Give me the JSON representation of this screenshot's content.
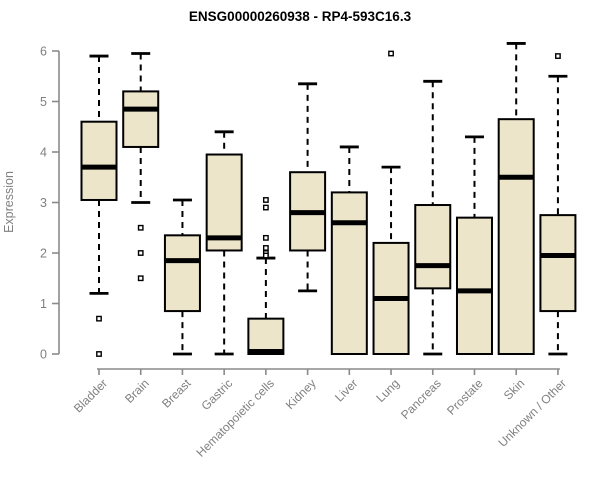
{
  "chart_data": {
    "type": "boxplot",
    "title": "ENSG00000260938 - RP4-593C16.3",
    "ylabel": "Expression",
    "xlabel": "",
    "ylim": [
      0,
      6
    ],
    "yticks": [
      0,
      1,
      2,
      3,
      4,
      5,
      6
    ],
    "grid": false,
    "legend": null,
    "categories": [
      "Bladder",
      "Brain",
      "Breast",
      "Gastric",
      "Hematopoietic cells",
      "Kidney",
      "Liver",
      "Lung",
      "Pancreas",
      "Prostate",
      "Skin",
      "Unknown / Other"
    ],
    "boxes": [
      {
        "category": "Bladder",
        "whisker_low": 1.2,
        "q1": 3.05,
        "median": 3.7,
        "q3": 4.6,
        "whisker_high": 5.9,
        "outliers": [
          0.7,
          0.0
        ]
      },
      {
        "category": "Brain",
        "whisker_low": 3.0,
        "q1": 4.1,
        "median": 4.85,
        "q3": 5.2,
        "whisker_high": 5.95,
        "outliers": [
          2.5,
          2.0,
          1.5
        ]
      },
      {
        "category": "Breast",
        "whisker_low": 0.0,
        "q1": 0.85,
        "median": 1.85,
        "q3": 2.35,
        "whisker_high": 3.05,
        "outliers": []
      },
      {
        "category": "Gastric",
        "whisker_low": 0.0,
        "q1": 2.05,
        "median": 2.3,
        "q3": 3.95,
        "whisker_high": 4.4,
        "outliers": []
      },
      {
        "category": "Hematopoietic cells",
        "whisker_low": 0.0,
        "q1": 0.0,
        "median": 0.05,
        "q3": 0.7,
        "whisker_high": 1.9,
        "outliers": [
          3.05,
          2.9,
          2.3,
          2.1,
          2.0,
          1.95
        ]
      },
      {
        "category": "Kidney",
        "whisker_low": 1.25,
        "q1": 2.05,
        "median": 2.8,
        "q3": 3.6,
        "whisker_high": 5.35,
        "outliers": []
      },
      {
        "category": "Liver",
        "whisker_low": 0.0,
        "q1": 0.0,
        "median": 2.6,
        "q3": 3.2,
        "whisker_high": 4.1,
        "outliers": []
      },
      {
        "category": "Lung",
        "whisker_low": 0.0,
        "q1": 0.0,
        "median": 1.1,
        "q3": 2.2,
        "whisker_high": 3.7,
        "outliers": [
          5.95
        ]
      },
      {
        "category": "Pancreas",
        "whisker_low": 0.0,
        "q1": 1.3,
        "median": 1.75,
        "q3": 2.95,
        "whisker_high": 5.4,
        "outliers": []
      },
      {
        "category": "Prostate",
        "whisker_low": 0.0,
        "q1": 0.0,
        "median": 1.25,
        "q3": 2.7,
        "whisker_high": 4.3,
        "outliers": []
      },
      {
        "category": "Skin",
        "whisker_low": 0.0,
        "q1": 0.0,
        "median": 3.5,
        "q3": 4.65,
        "whisker_high": 6.15,
        "outliers": []
      },
      {
        "category": "Unknown / Other",
        "whisker_low": 0.0,
        "q1": 0.85,
        "median": 1.95,
        "q3": 2.75,
        "whisker_high": 5.5,
        "outliers": [
          5.9
        ]
      }
    ],
    "colors": {
      "box_fill": "#ECE5C9",
      "box_border": "#000000",
      "median": "#000000",
      "whisker": "#000000",
      "outlier_stroke": "#000000",
      "outlier_fill": "#ffffff",
      "axis": "#8a8a8a",
      "tick_label": "#808080",
      "title": "#000000",
      "background": "#ffffff"
    }
  }
}
